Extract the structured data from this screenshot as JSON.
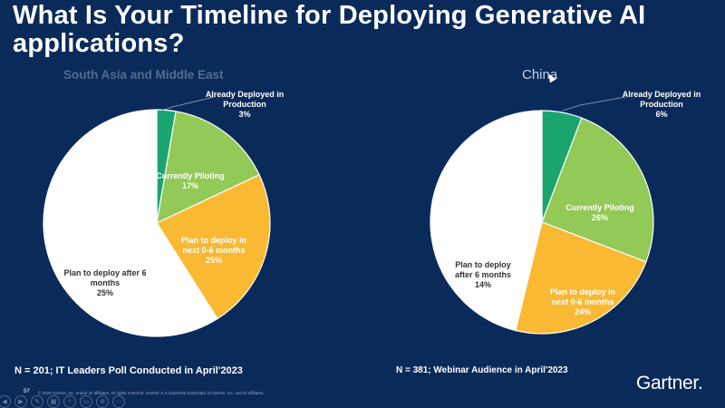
{
  "slide": {
    "title": "What Is Your Timeline for Deploying Generative AI applications?",
    "page_number": "57",
    "copyright": "© 2023 Gartner, Inc. and/or its affiliates. All rights reserved. Gartner is a registered trademark of Gartner, Inc. and its affiliates.",
    "brand": "Gartner",
    "colors": {
      "background": "#0a2a5a",
      "deployed": "#1aa56f",
      "piloting": "#92c957",
      "next_0_6": "#f9b933",
      "after_6": "#ffffff"
    }
  },
  "toolbar": {
    "items": [
      {
        "name": "previous",
        "glyph": "◀"
      },
      {
        "name": "next",
        "glyph": "▶"
      },
      {
        "name": "pen",
        "glyph": "✎"
      },
      {
        "name": "see-all-slides",
        "glyph": "▦"
      },
      {
        "name": "zoom",
        "glyph": "⌕"
      },
      {
        "name": "subtitles",
        "glyph": "▭"
      },
      {
        "name": "pointer-options",
        "glyph": "⊘"
      },
      {
        "name": "more",
        "glyph": "⋯"
      }
    ]
  },
  "chart_data": [
    {
      "type": "pie",
      "title": "South Asia and Middle East",
      "footnote": "N = 201; IT Leaders Poll Conducted in April'2023",
      "slices": [
        {
          "label": "Already Deployed in Production",
          "value_label": "3%",
          "value": 3
        },
        {
          "label": "Currently Piloting",
          "value_label": "17%",
          "value": 17
        },
        {
          "label": "Plan to deploy in next 0-6 months",
          "value_label": "25%",
          "value": 25
        },
        {
          "label": "Plan to deploy after 6 months",
          "value_label": "25%",
          "value": 25
        }
      ]
    },
    {
      "type": "pie",
      "title": "China",
      "footnote": "N = 381; Webinar Audience in April'2023",
      "slices": [
        {
          "label": "Already Deployed in Production",
          "value_label": "6%",
          "value": 6
        },
        {
          "label": "Currently Piloting",
          "value_label": "26%",
          "value": 26
        },
        {
          "label": "Plan to deploy in next 0-6 months",
          "value_label": "24%",
          "value": 24
        },
        {
          "label": "Plan to deploy after 6 months",
          "value_label": "14%",
          "value": 14
        }
      ]
    }
  ]
}
